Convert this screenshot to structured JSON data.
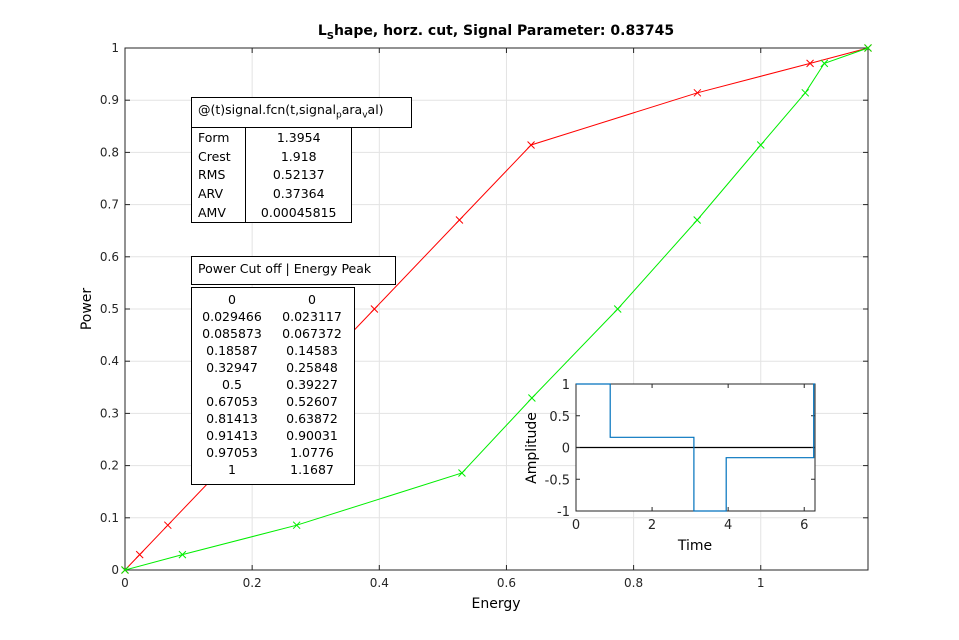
{
  "chart_data": [
    {
      "type": "line",
      "title_main": "L",
      "title_sub": "S",
      "title_rest": "hape, horz. cut, Signal Parameter: 0.83745",
      "xlabel": "Energy",
      "ylabel": "Power",
      "xlim": [
        0,
        1.1687
      ],
      "ylim": [
        0,
        1
      ],
      "xticks": [
        0,
        0.2,
        0.4,
        0.6,
        0.8,
        1
      ],
      "xtick_labels": [
        "0",
        "0.2",
        "0.4",
        "0.6",
        "0.8",
        "1"
      ],
      "yticks": [
        0,
        0.1,
        0.2,
        0.3,
        0.4,
        0.5,
        0.6,
        0.7,
        0.8,
        0.9,
        1
      ],
      "ytick_labels": [
        "0",
        "0.1",
        "0.2",
        "0.3",
        "0.4",
        "0.5",
        "0.6",
        "0.7",
        "0.8",
        "0.9",
        "1"
      ],
      "grid": true,
      "series": [
        {
          "color": "#ff0000",
          "marker": "x",
          "x": [
            0,
            0.023117,
            0.067372,
            0.14583,
            0.25848,
            0.39227,
            0.52607,
            0.63872,
            0.90031,
            1.0776,
            1.1687
          ],
          "y": [
            0,
            0.029466,
            0.085873,
            0.18587,
            0.32947,
            0.5,
            0.67053,
            0.81413,
            0.91413,
            0.97053,
            1
          ]
        },
        {
          "color": "#00ee00",
          "marker": "x",
          "x": [
            0,
            0.090309,
            0.27,
            0.53,
            0.64,
            0.775,
            0.9,
            1.0,
            1.07,
            1.1,
            1.1687
          ],
          "y": [
            0,
            0.029466,
            0.085873,
            0.18587,
            0.32947,
            0.5,
            0.67053,
            0.81413,
            0.91413,
            0.97053,
            1
          ]
        }
      ]
    },
    {
      "type": "line",
      "xlabel": "Time",
      "ylabel": "Amplitude",
      "xlim": [
        0,
        6.2832
      ],
      "ylim": [
        -1,
        1
      ],
      "xticks": [
        0,
        2,
        4,
        6
      ],
      "xtick_labels": [
        "0",
        "2",
        "4",
        "6"
      ],
      "yticks": [
        -1,
        -0.5,
        0,
        0.5,
        1
      ],
      "ytick_labels": [
        "-1",
        "-0.5",
        "0",
        "0.5",
        "1"
      ],
      "zero_line": true,
      "series": [
        {
          "color": "#0072bd",
          "x": [
            0,
            0.9,
            0.9,
            3.1,
            3.1,
            3.95,
            3.95,
            6.25,
            6.25,
            6.2832
          ],
          "y": [
            1,
            1,
            0.16,
            0.16,
            -1,
            -1,
            -0.16,
            -0.16,
            1,
            1
          ]
        }
      ]
    }
  ],
  "annotations": {
    "fcn_pre": "@(t)signal.fcn(t,signal",
    "fcn_sub1": "p",
    "fcn_mid": "ara",
    "fcn_sub2": "v",
    "fcn_post": "al)",
    "stats": [
      {
        "label": "Form",
        "value": "1.3954"
      },
      {
        "label": "Crest",
        "value": "1.918"
      },
      {
        "label": "RMS",
        "value": "0.52137"
      },
      {
        "label": "ARV",
        "value": "0.37364"
      },
      {
        "label": "AMV",
        "value": "0.00045815"
      }
    ],
    "peak_title": "Power Cut off | Energy Peak",
    "peak_rows": [
      [
        "0",
        "0"
      ],
      [
        "0.029466",
        "0.023117"
      ],
      [
        "0.085873",
        "0.067372"
      ],
      [
        "0.18587",
        "0.14583"
      ],
      [
        "0.32947",
        "0.25848"
      ],
      [
        "0.5",
        "0.39227"
      ],
      [
        "0.67053",
        "0.52607"
      ],
      [
        "0.81413",
        "0.63872"
      ],
      [
        "0.91413",
        "0.90031"
      ],
      [
        "0.97053",
        "1.0776"
      ],
      [
        "1",
        "1.1687"
      ]
    ]
  }
}
